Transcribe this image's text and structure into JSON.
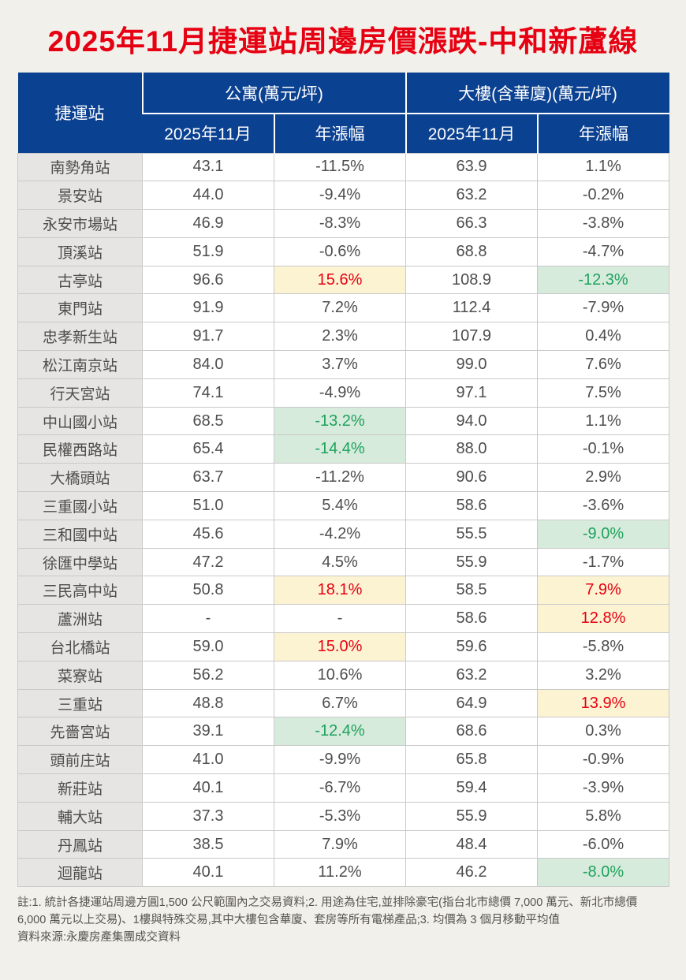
{
  "title": "2025年11月捷運站周邊房價漲跌-中和新蘆線",
  "colors": {
    "background": "#f2f0ea",
    "title_red": "#e60012",
    "header_blue": "#0b4191",
    "station_col_bg": "#e6e5e3",
    "grid_line": "#c9c9c9",
    "text_dark": "#4d4d4d",
    "up_bg": "#fcf3d2",
    "up_text": "#e60012",
    "down_bg": "#d7ebdd",
    "down_text": "#1ea25c",
    "note_text": "#56544f"
  },
  "table": {
    "station_header": "捷運站",
    "groups": [
      {
        "label": "公寓(萬元/坪)"
      },
      {
        "label": "大樓(含華廈)(萬元/坪)"
      }
    ],
    "sub_headers": [
      "2025年11月",
      "年漲幅",
      "2025年11月",
      "年漲幅"
    ],
    "rows": [
      {
        "station": "南勢角站",
        "apt_price": "43.1",
        "apt_yoy": "-11.5%",
        "apt_yoy_style": "",
        "bldg_price": "63.9",
        "bldg_yoy": "1.1%",
        "bldg_yoy_style": ""
      },
      {
        "station": "景安站",
        "apt_price": "44.0",
        "apt_yoy": "-9.4%",
        "apt_yoy_style": "",
        "bldg_price": "63.2",
        "bldg_yoy": "-0.2%",
        "bldg_yoy_style": ""
      },
      {
        "station": "永安市場站",
        "apt_price": "46.9",
        "apt_yoy": "-8.3%",
        "apt_yoy_style": "",
        "bldg_price": "66.3",
        "bldg_yoy": "-3.8%",
        "bldg_yoy_style": ""
      },
      {
        "station": "頂溪站",
        "apt_price": "51.9",
        "apt_yoy": "-0.6%",
        "apt_yoy_style": "",
        "bldg_price": "68.8",
        "bldg_yoy": "-4.7%",
        "bldg_yoy_style": ""
      },
      {
        "station": "古亭站",
        "apt_price": "96.6",
        "apt_yoy": "15.6%",
        "apt_yoy_style": "up",
        "bldg_price": "108.9",
        "bldg_yoy": "-12.3%",
        "bldg_yoy_style": "down"
      },
      {
        "station": "東門站",
        "apt_price": "91.9",
        "apt_yoy": "7.2%",
        "apt_yoy_style": "",
        "bldg_price": "112.4",
        "bldg_yoy": "-7.9%",
        "bldg_yoy_style": ""
      },
      {
        "station": "忠孝新生站",
        "apt_price": "91.7",
        "apt_yoy": "2.3%",
        "apt_yoy_style": "",
        "bldg_price": "107.9",
        "bldg_yoy": "0.4%",
        "bldg_yoy_style": ""
      },
      {
        "station": "松江南京站",
        "apt_price": "84.0",
        "apt_yoy": "3.7%",
        "apt_yoy_style": "",
        "bldg_price": "99.0",
        "bldg_yoy": "7.6%",
        "bldg_yoy_style": ""
      },
      {
        "station": "行天宮站",
        "apt_price": "74.1",
        "apt_yoy": "-4.9%",
        "apt_yoy_style": "",
        "bldg_price": "97.1",
        "bldg_yoy": "7.5%",
        "bldg_yoy_style": ""
      },
      {
        "station": "中山國小站",
        "apt_price": "68.5",
        "apt_yoy": "-13.2%",
        "apt_yoy_style": "down",
        "bldg_price": "94.0",
        "bldg_yoy": "1.1%",
        "bldg_yoy_style": ""
      },
      {
        "station": "民權西路站",
        "apt_price": "65.4",
        "apt_yoy": "-14.4%",
        "apt_yoy_style": "down",
        "bldg_price": "88.0",
        "bldg_yoy": "-0.1%",
        "bldg_yoy_style": ""
      },
      {
        "station": "大橋頭站",
        "apt_price": "63.7",
        "apt_yoy": "-11.2%",
        "apt_yoy_style": "",
        "bldg_price": "90.6",
        "bldg_yoy": "2.9%",
        "bldg_yoy_style": ""
      },
      {
        "station": "三重國小站",
        "apt_price": "51.0",
        "apt_yoy": "5.4%",
        "apt_yoy_style": "",
        "bldg_price": "58.6",
        "bldg_yoy": "-3.6%",
        "bldg_yoy_style": ""
      },
      {
        "station": "三和國中站",
        "apt_price": "45.6",
        "apt_yoy": "-4.2%",
        "apt_yoy_style": "",
        "bldg_price": "55.5",
        "bldg_yoy": "-9.0%",
        "bldg_yoy_style": "down"
      },
      {
        "station": "徐匯中學站",
        "apt_price": "47.2",
        "apt_yoy": "4.5%",
        "apt_yoy_style": "",
        "bldg_price": "55.9",
        "bldg_yoy": "-1.7%",
        "bldg_yoy_style": ""
      },
      {
        "station": "三民高中站",
        "apt_price": "50.8",
        "apt_yoy": "18.1%",
        "apt_yoy_style": "up",
        "bldg_price": "58.5",
        "bldg_yoy": "7.9%",
        "bldg_yoy_style": "up"
      },
      {
        "station": "蘆洲站",
        "apt_price": "-",
        "apt_yoy": "-",
        "apt_yoy_style": "",
        "bldg_price": "58.6",
        "bldg_yoy": "12.8%",
        "bldg_yoy_style": "up"
      },
      {
        "station": "台北橋站",
        "apt_price": "59.0",
        "apt_yoy": "15.0%",
        "apt_yoy_style": "up",
        "bldg_price": "59.6",
        "bldg_yoy": "-5.8%",
        "bldg_yoy_style": ""
      },
      {
        "station": "菜寮站",
        "apt_price": "56.2",
        "apt_yoy": "10.6%",
        "apt_yoy_style": "",
        "bldg_price": "63.2",
        "bldg_yoy": "3.2%",
        "bldg_yoy_style": ""
      },
      {
        "station": "三重站",
        "apt_price": "48.8",
        "apt_yoy": "6.7%",
        "apt_yoy_style": "",
        "bldg_price": "64.9",
        "bldg_yoy": "13.9%",
        "bldg_yoy_style": "up"
      },
      {
        "station": "先嗇宮站",
        "apt_price": "39.1",
        "apt_yoy": "-12.4%",
        "apt_yoy_style": "down",
        "bldg_price": "68.6",
        "bldg_yoy": "0.3%",
        "bldg_yoy_style": ""
      },
      {
        "station": "頭前庄站",
        "apt_price": "41.0",
        "apt_yoy": "-9.9%",
        "apt_yoy_style": "",
        "bldg_price": "65.8",
        "bldg_yoy": "-0.9%",
        "bldg_yoy_style": ""
      },
      {
        "station": "新莊站",
        "apt_price": "40.1",
        "apt_yoy": "-6.7%",
        "apt_yoy_style": "",
        "bldg_price": "59.4",
        "bldg_yoy": "-3.9%",
        "bldg_yoy_style": ""
      },
      {
        "station": "輔大站",
        "apt_price": "37.3",
        "apt_yoy": "-5.3%",
        "apt_yoy_style": "",
        "bldg_price": "55.9",
        "bldg_yoy": "5.8%",
        "bldg_yoy_style": ""
      },
      {
        "station": "丹鳳站",
        "apt_price": "38.5",
        "apt_yoy": "7.9%",
        "apt_yoy_style": "",
        "bldg_price": "48.4",
        "bldg_yoy": "-6.0%",
        "bldg_yoy_style": ""
      },
      {
        "station": "迴龍站",
        "apt_price": "40.1",
        "apt_yoy": "11.2%",
        "apt_yoy_style": "",
        "bldg_price": "46.2",
        "bldg_yoy": "-8.0%",
        "bldg_yoy_style": "down"
      }
    ]
  },
  "notes": {
    "line1": "註:1. 統計各捷運站周邊方圓1,500 公尺範圍內之交易資料;2. 用途為住宅,並排除豪宅(指台北市總價 7,000 萬元、新北市總價 6,000 萬元以上交易)、1樓與特殊交易,其中大樓包含華廈、套房等所有電梯產品;3. 均價為 3 個月移動平均值",
    "source": "資料來源:永慶房產集團成交資料"
  },
  "chart_data": {
    "type": "table",
    "title": "2025年11月捷運站周邊房價漲跌-中和新蘆線",
    "columns": [
      "捷運站",
      "公寓 2025年11月 (萬元/坪)",
      "公寓 年漲幅",
      "大樓(含華廈) 2025年11月 (萬元/坪)",
      "大樓(含華廈) 年漲幅"
    ],
    "rows": [
      [
        "南勢角站",
        43.1,
        "-11.5%",
        63.9,
        "1.1%"
      ],
      [
        "景安站",
        44.0,
        "-9.4%",
        63.2,
        "-0.2%"
      ],
      [
        "永安市場站",
        46.9,
        "-8.3%",
        66.3,
        "-3.8%"
      ],
      [
        "頂溪站",
        51.9,
        "-0.6%",
        68.8,
        "-4.7%"
      ],
      [
        "古亭站",
        96.6,
        "15.6%",
        108.9,
        "-12.3%"
      ],
      [
        "東門站",
        91.9,
        "7.2%",
        112.4,
        "-7.9%"
      ],
      [
        "忠孝新生站",
        91.7,
        "2.3%",
        107.9,
        "0.4%"
      ],
      [
        "松江南京站",
        84.0,
        "3.7%",
        99.0,
        "7.6%"
      ],
      [
        "行天宮站",
        74.1,
        "-4.9%",
        97.1,
        "7.5%"
      ],
      [
        "中山國小站",
        68.5,
        "-13.2%",
        94.0,
        "1.1%"
      ],
      [
        "民權西路站",
        65.4,
        "-14.4%",
        88.0,
        "-0.1%"
      ],
      [
        "大橋頭站",
        63.7,
        "-11.2%",
        90.6,
        "2.9%"
      ],
      [
        "三重國小站",
        51.0,
        "5.4%",
        58.6,
        "-3.6%"
      ],
      [
        "三和國中站",
        45.6,
        "-4.2%",
        55.5,
        "-9.0%"
      ],
      [
        "徐匯中學站",
        47.2,
        "4.5%",
        55.9,
        "-1.7%"
      ],
      [
        "三民高中站",
        50.8,
        "18.1%",
        58.5,
        "7.9%"
      ],
      [
        "蘆洲站",
        null,
        "-",
        58.6,
        "12.8%"
      ],
      [
        "台北橋站",
        59.0,
        "15.0%",
        59.6,
        "-5.8%"
      ],
      [
        "菜寮站",
        56.2,
        "10.6%",
        63.2,
        "3.2%"
      ],
      [
        "三重站",
        48.8,
        "6.7%",
        64.9,
        "13.9%"
      ],
      [
        "先嗇宮站",
        39.1,
        "-12.4%",
        68.6,
        "0.3%"
      ],
      [
        "頭前庄站",
        41.0,
        "-9.9%",
        65.8,
        "-0.9%"
      ],
      [
        "新莊站",
        40.1,
        "-6.7%",
        59.4,
        "-3.9%"
      ],
      [
        "輔大站",
        37.3,
        "-5.3%",
        55.9,
        "5.8%"
      ],
      [
        "丹鳳站",
        38.5,
        "7.9%",
        48.4,
        "-6.0%"
      ],
      [
        "迴龍站",
        40.1,
        "11.2%",
        46.2,
        "-8.0%"
      ]
    ]
  }
}
